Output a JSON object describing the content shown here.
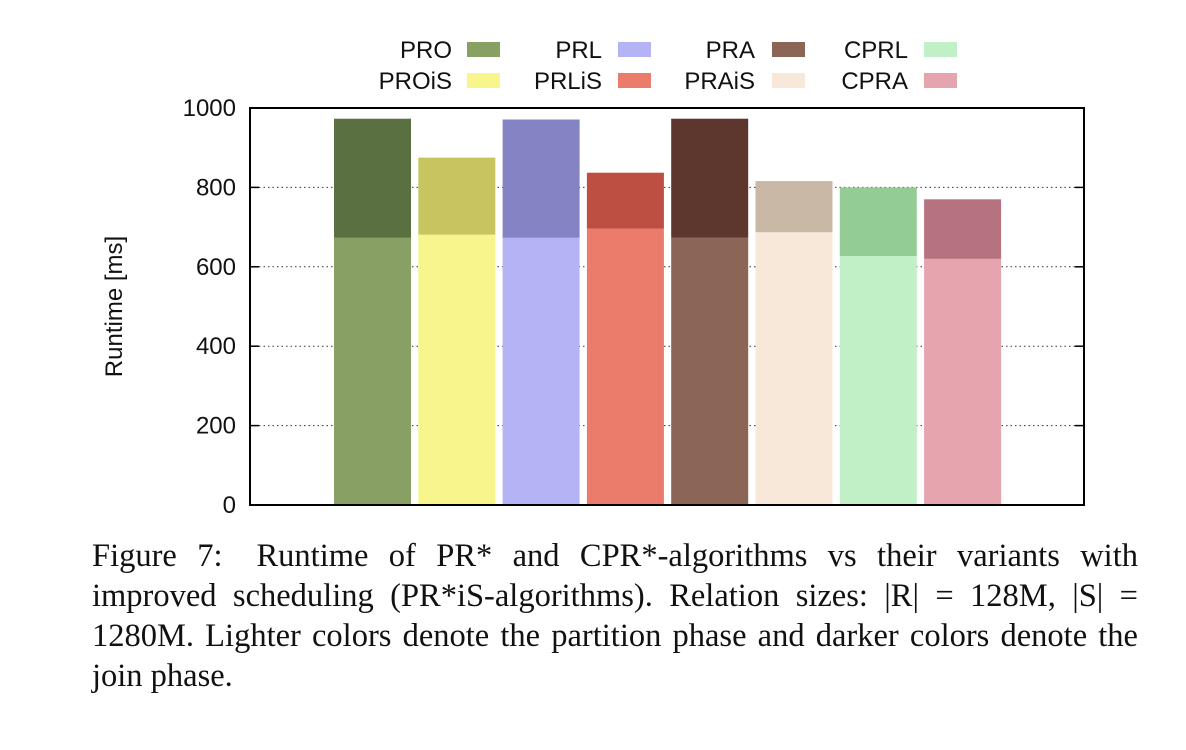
{
  "chart_data": {
    "type": "bar",
    "stacked": true,
    "ylabel": "Runtime [ms]",
    "xlabel": "",
    "ylim": [
      0,
      1000
    ],
    "yticks": [
      0,
      200,
      400,
      600,
      800,
      1000
    ],
    "grid": "dotted horizontal",
    "legend_position": "top",
    "categories": [
      "PRO",
      "PROiS",
      "PRL",
      "PRLiS",
      "PRA",
      "PRAiS",
      "CPRL",
      "CPRA"
    ],
    "series": [
      {
        "phase": "partition",
        "values": [
          673,
          681,
          673,
          696,
          673,
          687,
          627,
          620
        ]
      },
      {
        "phase": "join",
        "values": [
          300,
          194,
          298,
          141,
          300,
          129,
          173,
          150
        ]
      }
    ],
    "totals": [
      973,
      875,
      971,
      837,
      973,
      816,
      800,
      770
    ],
    "colors": {
      "PRO": {
        "light": "#88a064",
        "dark": "#5a7040"
      },
      "PROiS": {
        "light": "#f8f58c",
        "dark": "#c8c460"
      },
      "PRL": {
        "light": "#b3b3f5",
        "dark": "#8484c5"
      },
      "PRLiS": {
        "light": "#eb7c6c",
        "dark": "#bc4e42"
      },
      "PRA": {
        "light": "#8b6555",
        "dark": "#5d372e"
      },
      "PRAiS": {
        "light": "#f8e8da",
        "dark": "#c9b8a6"
      },
      "CPRL": {
        "light": "#c2f0c6",
        "dark": "#94cc96"
      },
      "CPRA": {
        "light": "#e6a4af",
        "dark": "#b7727f"
      }
    },
    "legend_rows": [
      [
        "PRO",
        "PRL",
        "PRA",
        "CPRL"
      ],
      [
        "PROiS",
        "PRLiS",
        "PRAiS",
        "CPRA"
      ]
    ]
  },
  "caption": {
    "label": "Figure 7:",
    "text": "Runtime of PR* and CPR*-algorithms vs their variants with improved scheduling (PR*iS-algorithms). Relation sizes: |R| = 128M, |S| = 1280M. Lighter colors denote the partition phase and darker colors denote the join phase."
  }
}
